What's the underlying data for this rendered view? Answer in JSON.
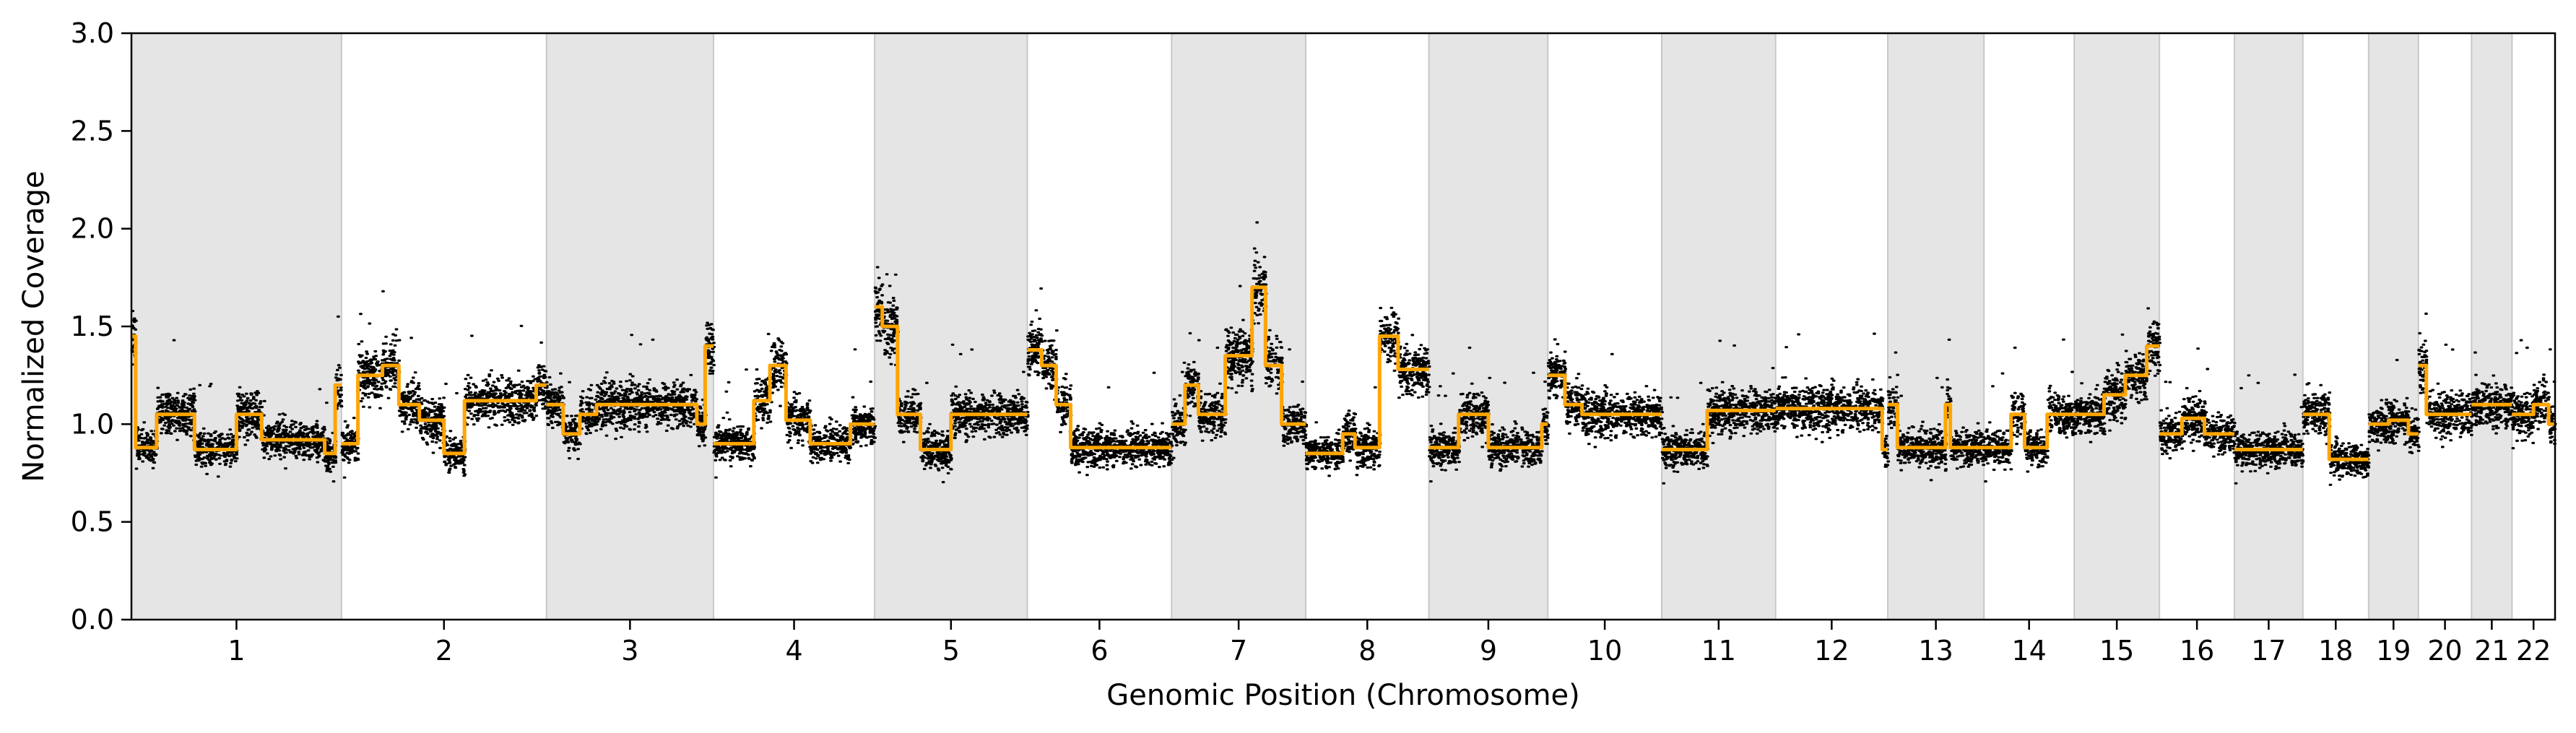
{
  "chart_data": {
    "type": "scatter",
    "xlabel": "Genomic Position (Chromosome)",
    "ylabel": "Normalized Coverage",
    "ylim": [
      0.0,
      3.0
    ],
    "yticks": [
      0.0,
      0.5,
      1.0,
      1.5,
      2.0,
      2.5,
      3.0
    ],
    "ytick_labels": [
      "0.0",
      "0.5",
      "1.0",
      "1.5",
      "2.0",
      "2.5",
      "3.0"
    ],
    "grid": false,
    "legend": "none",
    "colors": {
      "points": "#000000",
      "segments": "#FFA500",
      "band": "#E5E5E5"
    },
    "series": [
      {
        "type": "scatter"
      },
      {
        "type": "line"
      }
    ],
    "chromosomes": [
      {
        "label": "1",
        "size": 249,
        "shaded": true,
        "segments": [
          [
            0,
            0.02,
            1.45
          ],
          [
            0.02,
            0.12,
            0.88
          ],
          [
            0.12,
            0.3,
            1.05
          ],
          [
            0.3,
            0.5,
            0.87
          ],
          [
            0.5,
            0.62,
            1.05
          ],
          [
            0.62,
            0.92,
            0.92
          ],
          [
            0.92,
            0.97,
            0.85
          ],
          [
            0.97,
            1,
            1.2
          ]
        ]
      },
      {
        "label": "2",
        "size": 243,
        "shaded": false,
        "segments": [
          [
            0,
            0.08,
            0.9
          ],
          [
            0.08,
            0.2,
            1.25
          ],
          [
            0.2,
            0.28,
            1.3
          ],
          [
            0.28,
            0.38,
            1.1
          ],
          [
            0.38,
            0.5,
            1.02
          ],
          [
            0.5,
            0.6,
            0.85
          ],
          [
            0.6,
            0.95,
            1.12
          ],
          [
            0.95,
            1,
            1.2
          ]
        ]
      },
      {
        "label": "3",
        "size": 198,
        "shaded": true,
        "segments": [
          [
            0,
            0.1,
            1.1
          ],
          [
            0.1,
            0.2,
            0.95
          ],
          [
            0.2,
            0.3,
            1.05
          ],
          [
            0.3,
            0.9,
            1.1
          ],
          [
            0.9,
            0.95,
            1.0
          ],
          [
            0.95,
            1,
            1.4
          ]
        ]
      },
      {
        "label": "4",
        "size": 191,
        "shaded": false,
        "segments": [
          [
            0,
            0.25,
            0.9
          ],
          [
            0.25,
            0.35,
            1.12
          ],
          [
            0.35,
            0.45,
            1.3
          ],
          [
            0.45,
            0.6,
            1.02
          ],
          [
            0.6,
            0.85,
            0.9
          ],
          [
            0.85,
            1,
            1.0
          ]
        ]
      },
      {
        "label": "5",
        "size": 181,
        "shaded": true,
        "segments": [
          [
            0,
            0.05,
            1.6
          ],
          [
            0.05,
            0.15,
            1.5
          ],
          [
            0.15,
            0.3,
            1.05
          ],
          [
            0.3,
            0.5,
            0.87
          ],
          [
            0.5,
            1,
            1.05
          ]
        ]
      },
      {
        "label": "6",
        "size": 171,
        "shaded": false,
        "segments": [
          [
            0,
            0.1,
            1.38
          ],
          [
            0.1,
            0.2,
            1.3
          ],
          [
            0.2,
            0.3,
            1.1
          ],
          [
            0.3,
            1,
            0.88
          ]
        ]
      },
      {
        "label": "7",
        "size": 159,
        "shaded": true,
        "segments": [
          [
            0,
            0.1,
            1.0
          ],
          [
            0.1,
            0.2,
            1.2
          ],
          [
            0.2,
            0.4,
            1.05
          ],
          [
            0.4,
            0.6,
            1.35
          ],
          [
            0.6,
            0.7,
            1.7
          ],
          [
            0.7,
            0.82,
            1.3
          ],
          [
            0.82,
            1,
            1.0
          ]
        ]
      },
      {
        "label": "8",
        "size": 146,
        "shaded": false,
        "segments": [
          [
            0,
            0.3,
            0.85
          ],
          [
            0.3,
            0.4,
            0.95
          ],
          [
            0.4,
            0.6,
            0.88
          ],
          [
            0.6,
            0.75,
            1.45
          ],
          [
            0.75,
            1,
            1.28
          ]
        ]
      },
      {
        "label": "9",
        "size": 141,
        "shaded": true,
        "segments": [
          [
            0,
            0.25,
            0.88
          ],
          [
            0.25,
            0.5,
            1.05
          ],
          [
            0.5,
            0.95,
            0.88
          ],
          [
            0.95,
            1,
            1.0
          ]
        ]
      },
      {
        "label": "10",
        "size": 135,
        "shaded": false,
        "segments": [
          [
            0,
            0.15,
            1.25
          ],
          [
            0.15,
            0.3,
            1.1
          ],
          [
            0.3,
            1,
            1.05
          ]
        ]
      },
      {
        "label": "11",
        "size": 135,
        "shaded": true,
        "segments": [
          [
            0,
            0.4,
            0.87
          ],
          [
            0.4,
            1,
            1.07
          ]
        ]
      },
      {
        "label": "12",
        "size": 133,
        "shaded": false,
        "segments": [
          [
            0,
            0.95,
            1.08
          ],
          [
            0.95,
            1,
            0.87
          ]
        ]
      },
      {
        "label": "13",
        "size": 114,
        "shaded": true,
        "segments": [
          [
            0,
            0.1,
            1.1
          ],
          [
            0.1,
            0.6,
            0.88
          ],
          [
            0.6,
            0.65,
            1.1
          ],
          [
            0.65,
            1,
            0.88
          ]
        ]
      },
      {
        "label": "14",
        "size": 107,
        "shaded": false,
        "segments": [
          [
            0,
            0.3,
            0.88
          ],
          [
            0.3,
            0.45,
            1.05
          ],
          [
            0.45,
            0.7,
            0.88
          ],
          [
            0.7,
            1,
            1.05
          ]
        ]
      },
      {
        "label": "15",
        "size": 101,
        "shaded": true,
        "segments": [
          [
            0,
            0.35,
            1.05
          ],
          [
            0.35,
            0.6,
            1.15
          ],
          [
            0.6,
            0.85,
            1.25
          ],
          [
            0.85,
            1,
            1.4
          ]
        ]
      },
      {
        "label": "16",
        "size": 89,
        "shaded": false,
        "segments": [
          [
            0,
            0.3,
            0.95
          ],
          [
            0.3,
            0.6,
            1.03
          ],
          [
            0.6,
            1,
            0.95
          ]
        ]
      },
      {
        "label": "17",
        "size": 81,
        "shaded": true,
        "segments": [
          [
            0,
            1,
            0.87
          ]
        ]
      },
      {
        "label": "18",
        "size": 78,
        "shaded": false,
        "segments": [
          [
            0,
            0.4,
            1.05
          ],
          [
            0.4,
            1,
            0.82
          ]
        ]
      },
      {
        "label": "19",
        "size": 59,
        "shaded": true,
        "segments": [
          [
            0,
            0.4,
            1.0
          ],
          [
            0.4,
            0.8,
            1.02
          ],
          [
            0.8,
            1,
            0.95
          ]
        ]
      },
      {
        "label": "20",
        "size": 63,
        "shaded": false,
        "segments": [
          [
            0,
            0.15,
            1.3
          ],
          [
            0.15,
            1,
            1.05
          ]
        ]
      },
      {
        "label": "21",
        "size": 48,
        "shaded": true,
        "segments": [
          [
            0,
            1,
            1.1
          ]
        ]
      },
      {
        "label": "22",
        "size": 51,
        "shaded": false,
        "segments": [
          [
            0,
            0.5,
            1.05
          ],
          [
            0.5,
            0.85,
            1.1
          ],
          [
            0.85,
            1,
            1.0
          ]
        ]
      }
    ]
  }
}
